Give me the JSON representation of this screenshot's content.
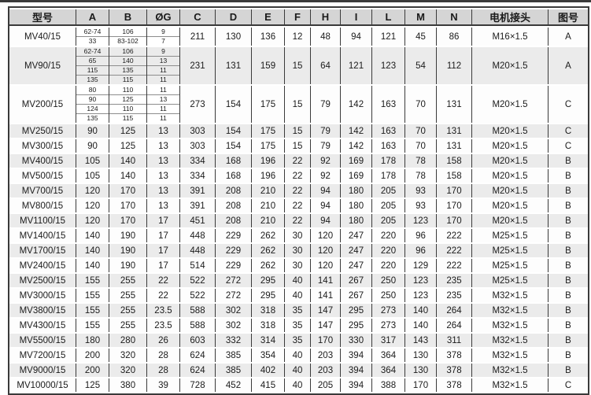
{
  "page": {
    "top_rule_color": "#3a3a3a",
    "header_bg": "#d5d5d5",
    "stripe_bg": "#ebebeb",
    "border_color": "#3a3a3a"
  },
  "table": {
    "headers": [
      "型号",
      "A",
      "B",
      "ØG",
      "C",
      "D",
      "E",
      "F",
      "H",
      "I",
      "L",
      "M",
      "N",
      "电机接头",
      "图号"
    ],
    "column_keys": [
      "model",
      "a",
      "b",
      "g",
      "c",
      "d",
      "e",
      "f",
      "h",
      "i",
      "l",
      "m",
      "n",
      "conn",
      "fig"
    ],
    "rows": [
      {
        "model": "MV40/15",
        "a": [
          "62-74",
          "33"
        ],
        "b": [
          "106",
          "83-102"
        ],
        "g": [
          "9",
          "7"
        ],
        "c": "211",
        "d": "130",
        "e": "136",
        "f": "12",
        "h": "48",
        "i": "94",
        "l": "121",
        "m": "45",
        "n": "86",
        "conn": "M16×1.5",
        "fig": "A"
      },
      {
        "model": "MV90/15",
        "a": [
          "62-74",
          "65",
          "115",
          "135"
        ],
        "b": [
          "106",
          "140",
          "135",
          "115"
        ],
        "g": [
          "9",
          "13",
          "11",
          "11"
        ],
        "c": "231",
        "d": "131",
        "e": "159",
        "f": "15",
        "h": "64",
        "i": "121",
        "l": "123",
        "m": "54",
        "n": "112",
        "conn": "M20×1.5",
        "fig": "A"
      },
      {
        "model": "MV200/15",
        "a": [
          "80",
          "90",
          "124",
          "135"
        ],
        "b": [
          "110",
          "125",
          "110",
          "115"
        ],
        "g": [
          "11",
          "13",
          "11",
          "11"
        ],
        "c": "273",
        "d": "154",
        "e": "175",
        "f": "15",
        "h": "79",
        "i": "142",
        "l": "163",
        "m": "70",
        "n": "131",
        "conn": "M20×1.5",
        "fig": "C"
      },
      {
        "model": "MV250/15",
        "a": [
          "90"
        ],
        "b": [
          "125"
        ],
        "g": [
          "13"
        ],
        "c": "303",
        "d": "154",
        "e": "175",
        "f": "15",
        "h": "79",
        "i": "142",
        "l": "163",
        "m": "70",
        "n": "131",
        "conn": "M20×1.5",
        "fig": "C"
      },
      {
        "model": "MV300/15",
        "a": [
          "90"
        ],
        "b": [
          "125"
        ],
        "g": [
          "13"
        ],
        "c": "303",
        "d": "154",
        "e": "175",
        "f": "15",
        "h": "79",
        "i": "142",
        "l": "163",
        "m": "70",
        "n": "131",
        "conn": "M20×1.5",
        "fig": "C"
      },
      {
        "model": "MV400/15",
        "a": [
          "105"
        ],
        "b": [
          "140"
        ],
        "g": [
          "13"
        ],
        "c": "334",
        "d": "168",
        "e": "196",
        "f": "22",
        "h": "92",
        "i": "169",
        "l": "178",
        "m": "78",
        "n": "158",
        "conn": "M20×1.5",
        "fig": "B"
      },
      {
        "model": "MV500/15",
        "a": [
          "105"
        ],
        "b": [
          "140"
        ],
        "g": [
          "13"
        ],
        "c": "334",
        "d": "168",
        "e": "196",
        "f": "22",
        "h": "92",
        "i": "169",
        "l": "178",
        "m": "78",
        "n": "158",
        "conn": "M20×1.5",
        "fig": "B"
      },
      {
        "model": "MV700/15",
        "a": [
          "120"
        ],
        "b": [
          "170"
        ],
        "g": [
          "13"
        ],
        "c": "391",
        "d": "208",
        "e": "210",
        "f": "22",
        "h": "94",
        "i": "180",
        "l": "205",
        "m": "93",
        "n": "170",
        "conn": "M20×1.5",
        "fig": "B"
      },
      {
        "model": "MV800/15",
        "a": [
          "120"
        ],
        "b": [
          "170"
        ],
        "g": [
          "13"
        ],
        "c": "391",
        "d": "208",
        "e": "210",
        "f": "22",
        "h": "94",
        "i": "180",
        "l": "205",
        "m": "93",
        "n": "170",
        "conn": "M20×1.5",
        "fig": "B"
      },
      {
        "model": "MV1100/15",
        "a": [
          "120"
        ],
        "b": [
          "170"
        ],
        "g": [
          "17"
        ],
        "c": "451",
        "d": "208",
        "e": "210",
        "f": "22",
        "h": "94",
        "i": "180",
        "l": "205",
        "m": "123",
        "n": "170",
        "conn": "M20×1.5",
        "fig": "B"
      },
      {
        "model": "MV1400/15",
        "a": [
          "140"
        ],
        "b": [
          "190"
        ],
        "g": [
          "17"
        ],
        "c": "448",
        "d": "229",
        "e": "262",
        "f": "30",
        "h": "120",
        "i": "247",
        "l": "220",
        "m": "96",
        "n": "222",
        "conn": "M25×1.5",
        "fig": "B"
      },
      {
        "model": "MV1700/15",
        "a": [
          "140"
        ],
        "b": [
          "190"
        ],
        "g": [
          "17"
        ],
        "c": "448",
        "d": "229",
        "e": "262",
        "f": "30",
        "h": "120",
        "i": "247",
        "l": "220",
        "m": "96",
        "n": "222",
        "conn": "M25×1.5",
        "fig": "B"
      },
      {
        "model": "MV2400/15",
        "a": [
          "140"
        ],
        "b": [
          "190"
        ],
        "g": [
          "17"
        ],
        "c": "514",
        "d": "229",
        "e": "262",
        "f": "30",
        "h": "120",
        "i": "247",
        "l": "220",
        "m": "129",
        "n": "222",
        "conn": "M25×1.5",
        "fig": "B"
      },
      {
        "model": "MV2500/15",
        "a": [
          "155"
        ],
        "b": [
          "255"
        ],
        "g": [
          "22"
        ],
        "c": "522",
        "d": "272",
        "e": "295",
        "f": "40",
        "h": "141",
        "i": "267",
        "l": "250",
        "m": "123",
        "n": "235",
        "conn": "M25×1.5",
        "fig": "B"
      },
      {
        "model": "MV3000/15",
        "a": [
          "155"
        ],
        "b": [
          "255"
        ],
        "g": [
          "22"
        ],
        "c": "522",
        "d": "272",
        "e": "295",
        "f": "40",
        "h": "141",
        "i": "267",
        "l": "250",
        "m": "123",
        "n": "235",
        "conn": "M32×1.5",
        "fig": "B"
      },
      {
        "model": "MV3800/15",
        "a": [
          "155"
        ],
        "b": [
          "255"
        ],
        "g": [
          "23.5"
        ],
        "c": "588",
        "d": "302",
        "e": "318",
        "f": "35",
        "h": "147",
        "i": "295",
        "l": "273",
        "m": "140",
        "n": "264",
        "conn": "M32×1.5",
        "fig": "B"
      },
      {
        "model": "MV4300/15",
        "a": [
          "155"
        ],
        "b": [
          "255"
        ],
        "g": [
          "23.5"
        ],
        "c": "588",
        "d": "302",
        "e": "318",
        "f": "35",
        "h": "147",
        "i": "295",
        "l": "273",
        "m": "140",
        "n": "264",
        "conn": "M32×1.5",
        "fig": "B"
      },
      {
        "model": "MV5500/15",
        "a": [
          "180"
        ],
        "b": [
          "280"
        ],
        "g": [
          "26"
        ],
        "c": "603",
        "d": "332",
        "e": "314",
        "f": "35",
        "h": "170",
        "i": "330",
        "l": "317",
        "m": "143",
        "n": "311",
        "conn": "M32×1.5",
        "fig": "B"
      },
      {
        "model": "MV7200/15",
        "a": [
          "200"
        ],
        "b": [
          "320"
        ],
        "g": [
          "28"
        ],
        "c": "624",
        "d": "385",
        "e": "354",
        "f": "40",
        "h": "203",
        "i": "394",
        "l": "364",
        "m": "130",
        "n": "378",
        "conn": "M32×1.5",
        "fig": "B"
      },
      {
        "model": "MV9000/15",
        "a": [
          "200"
        ],
        "b": [
          "320"
        ],
        "g": [
          "28"
        ],
        "c": "624",
        "d": "385",
        "e": "402",
        "f": "40",
        "h": "203",
        "i": "394",
        "l": "364",
        "m": "130",
        "n": "378",
        "conn": "M32×1.5",
        "fig": "B"
      },
      {
        "model": "MV10000/15",
        "a": [
          "125"
        ],
        "b": [
          "380"
        ],
        "g": [
          "39"
        ],
        "c": "728",
        "d": "452",
        "e": "415",
        "f": "40",
        "h": "205",
        "i": "394",
        "l": "388",
        "m": "170",
        "n": "378",
        "conn": "M32×1.5",
        "fig": "C"
      }
    ]
  }
}
